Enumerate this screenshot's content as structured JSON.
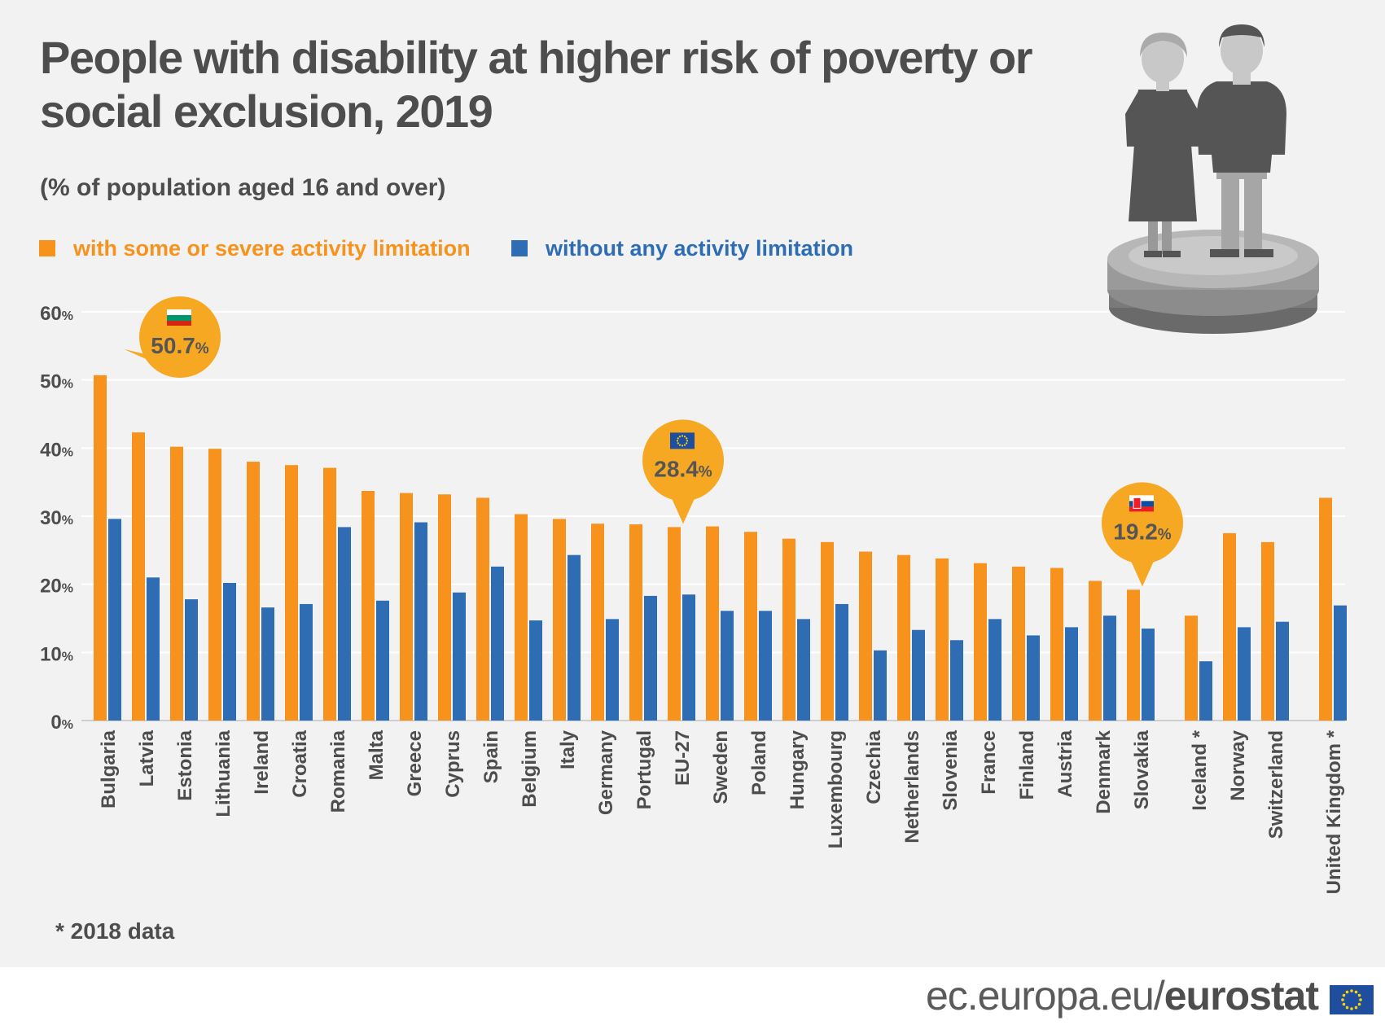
{
  "title": "People with disability at higher risk of poverty or social exclusion, 2019",
  "subtitle": "(% of population aged 16 and over)",
  "legend": {
    "series_1": "with some or severe activity limitation",
    "series_2": "without any activity limitation"
  },
  "footnote": "* 2018 data",
  "footer": {
    "domain": "ec.europa.eu/",
    "brand": "eurostat"
  },
  "colors": {
    "series_1": "#f7931d",
    "series_2": "#2e6db4",
    "text": "#4d4d4d",
    "callout": "#f7a823"
  },
  "chart_data": {
    "type": "bar",
    "ylim": [
      0,
      60
    ],
    "yticks": [
      0,
      10,
      20,
      30,
      40,
      50,
      60
    ],
    "tick_unit": "%",
    "grid": true,
    "legend_position": "top-left",
    "categories": [
      "Bulgaria",
      "Latvia",
      "Estonia",
      "Lithuania",
      "Ireland",
      "Croatia",
      "Romania",
      "Malta",
      "Greece",
      "Cyprus",
      "Spain",
      "Belgium",
      "Italy",
      "Germany",
      "Portugal",
      "EU-27",
      "Sweden",
      "Poland",
      "Hungary",
      "Luxembourg",
      "Czechia",
      "Netherlands",
      "Slovenia",
      "France",
      "Finland",
      "Austria",
      "Denmark",
      "Slovakia",
      "Iceland *",
      "Norway",
      "Switzerland",
      "United Kingdom *"
    ],
    "series": [
      {
        "name": "with some or severe activity limitation",
        "values": [
          50.7,
          42.3,
          40.2,
          39.9,
          38.0,
          37.5,
          37.1,
          33.7,
          33.4,
          33.2,
          32.7,
          30.3,
          29.6,
          28.9,
          28.8,
          28.4,
          28.5,
          27.7,
          26.7,
          26.2,
          24.8,
          24.3,
          23.8,
          23.1,
          22.6,
          22.4,
          20.5,
          19.2,
          15.4,
          27.5,
          26.2,
          32.7
        ]
      },
      {
        "name": "without any activity limitation",
        "values": [
          29.6,
          21.0,
          17.8,
          20.2,
          16.6,
          17.1,
          28.4,
          17.6,
          29.1,
          18.8,
          22.6,
          14.7,
          24.3,
          14.9,
          18.3,
          18.5,
          16.1,
          16.1,
          14.9,
          17.1,
          10.3,
          13.3,
          11.8,
          14.9,
          12.5,
          13.7,
          15.4,
          13.5,
          8.7,
          13.7,
          14.5,
          16.9
        ]
      }
    ],
    "callouts": [
      {
        "category": "Bulgaria",
        "value": "50.7",
        "unit": "%"
      },
      {
        "category": "EU-27",
        "value": "28.4",
        "unit": "%"
      },
      {
        "category": "Slovakia",
        "value": "19.2",
        "unit": "%"
      }
    ]
  }
}
